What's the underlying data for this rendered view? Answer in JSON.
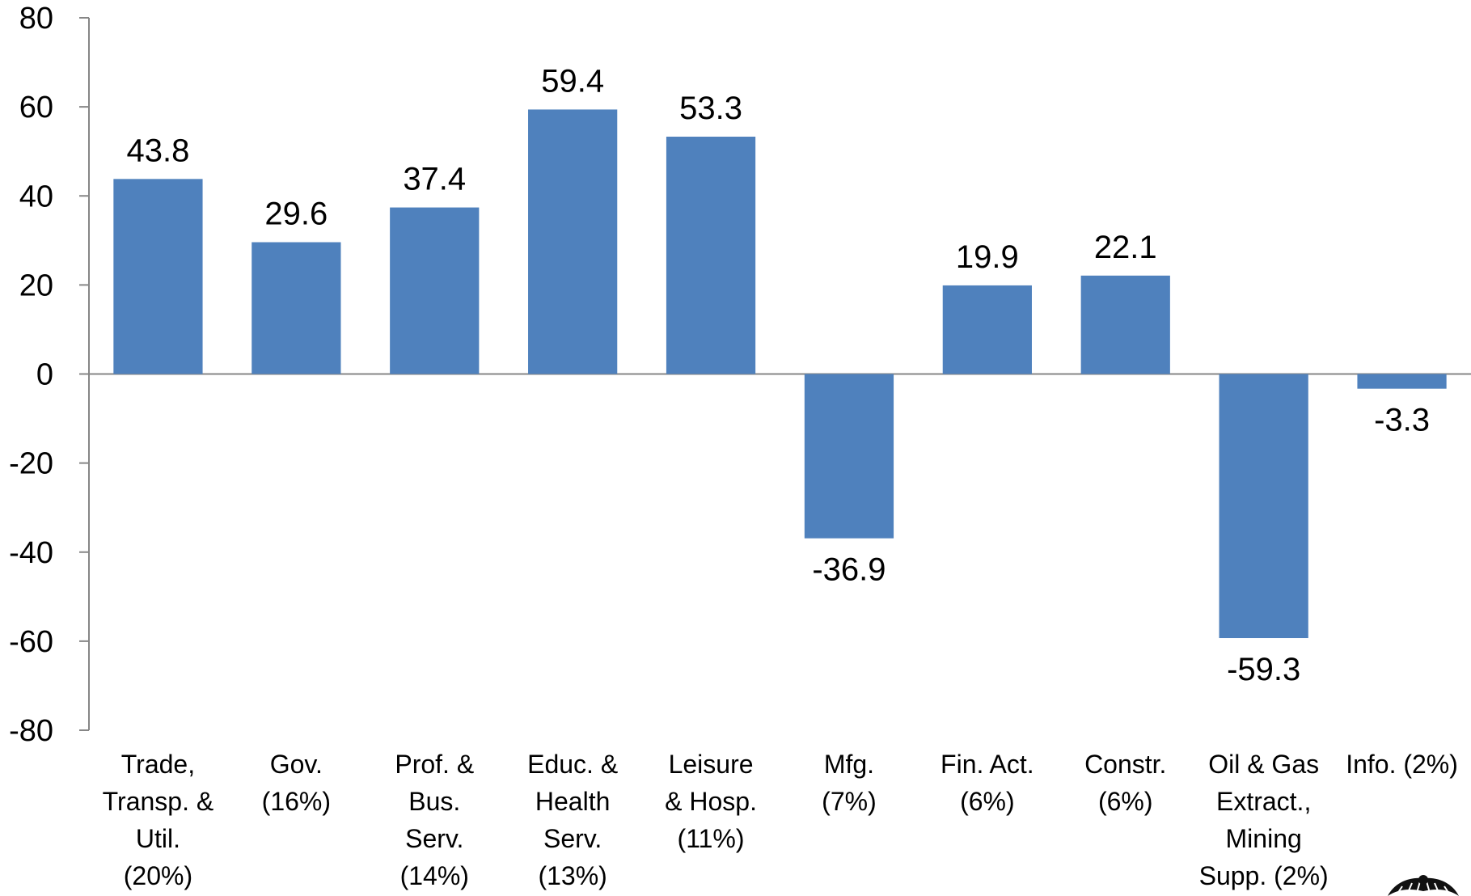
{
  "chart_data": {
    "type": "bar",
    "title": "",
    "xlabel": "",
    "ylabel": "",
    "ylim": [
      -80,
      80
    ],
    "yticks": [
      80,
      60,
      40,
      20,
      0,
      -20,
      -40,
      -60,
      -80
    ],
    "grid": false,
    "legend": "none",
    "bar_color": "#4f81bd",
    "categories": [
      [
        "Trade,",
        "Transp. &",
        "Util.",
        "(20%)"
      ],
      [
        "Gov.",
        "(16%)"
      ],
      [
        "Prof. &",
        "Bus.",
        "Serv.",
        "(14%)"
      ],
      [
        "Educ. &",
        "Health",
        "Serv.",
        "(13%)"
      ],
      [
        "Leisure",
        "& Hosp.",
        "(11%)"
      ],
      [
        "Mfg.",
        "(7%)"
      ],
      [
        "Fin. Act.",
        "(6%)"
      ],
      [
        "Constr.",
        "(6%)"
      ],
      [
        "Oil & Gas",
        "Extract.,",
        "Mining",
        "Supp. (2%)"
      ],
      [
        "Info. (2%)"
      ]
    ],
    "values": [
      43.8,
      29.6,
      37.4,
      59.4,
      53.3,
      -36.9,
      19.9,
      22.1,
      -59.3,
      -3.3
    ],
    "data_labels": [
      "43.8",
      "29.6",
      "37.4",
      "59.4",
      "53.3",
      "-36.9",
      "19.9",
      "22.1",
      "-59.3",
      "-3.3"
    ]
  },
  "logo": {
    "icon": "eagle-seal-icon"
  }
}
